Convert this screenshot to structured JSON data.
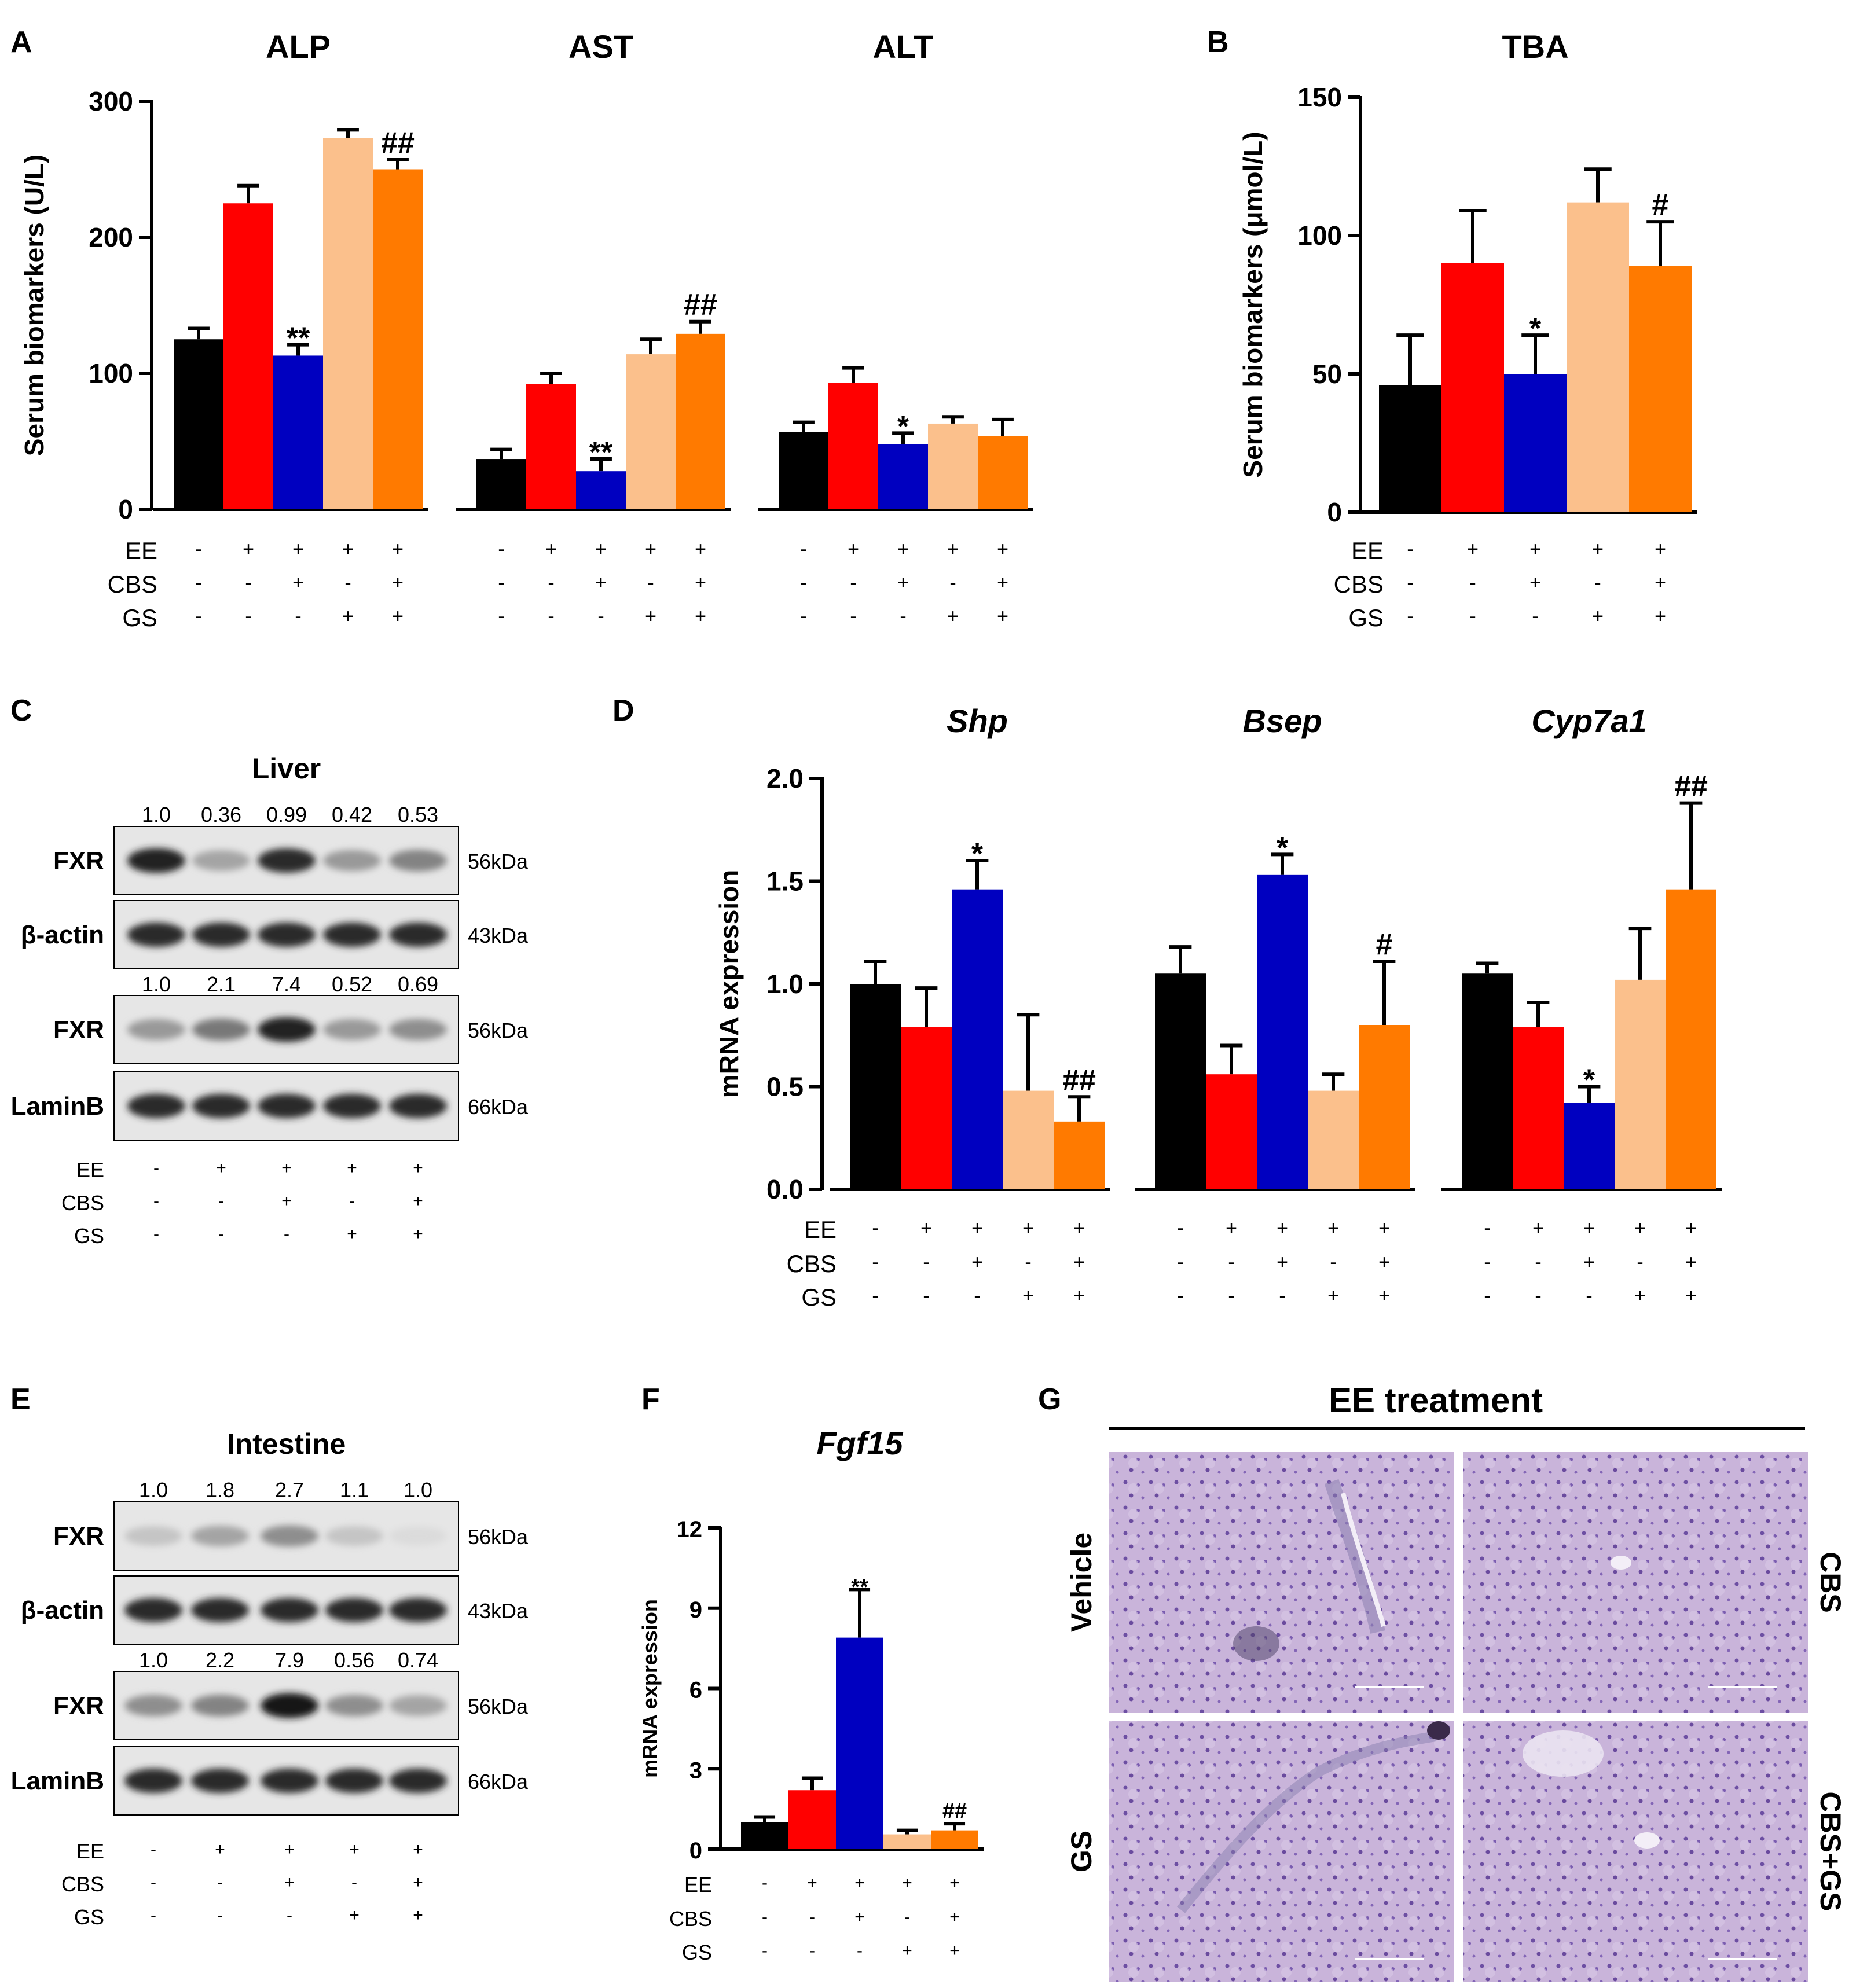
{
  "colors": [
    "#000000",
    "#ff0000",
    "#0000c0",
    "#fbc08c",
    "#ff7a00"
  ],
  "chart_data": [
    {
      "panel": "A",
      "type": "bar",
      "ylabel": "Serum biomarkers (U/L)",
      "ylim": [
        0,
        300
      ],
      "ticks": [
        "0",
        "100",
        "200",
        "300"
      ],
      "tickvals": [
        0,
        100,
        200,
        300
      ],
      "treatment": {
        "rows": [
          "EE",
          "CBS",
          "GS"
        ],
        "signs": [
          [
            "-",
            "+",
            "+",
            "+",
            "+"
          ],
          [
            "-",
            "-",
            "+",
            "-",
            "+"
          ],
          [
            "-",
            "-",
            "-",
            "+",
            "+"
          ]
        ]
      },
      "groups": [
        {
          "title": "ALP",
          "values": [
            125,
            225,
            113,
            273,
            250
          ],
          "errors": [
            8,
            13,
            8,
            6,
            7
          ],
          "sig": [
            "",
            "",
            "**",
            "",
            "##"
          ]
        },
        {
          "title": "AST",
          "values": [
            37,
            92,
            28,
            114,
            129
          ],
          "errors": [
            7,
            8,
            9,
            11,
            9
          ],
          "sig": [
            "",
            "",
            "**",
            "",
            "##"
          ]
        },
        {
          "title": "ALT",
          "values": [
            57,
            93,
            48,
            63,
            54
          ],
          "errors": [
            7,
            11,
            8,
            5,
            12
          ],
          "sig": [
            "",
            "",
            "*",
            "",
            ""
          ]
        }
      ]
    },
    {
      "panel": "B",
      "type": "bar",
      "ylabel": "Serum biomarkers (μmol/L)",
      "ylim": [
        0,
        150
      ],
      "ticks": [
        "0",
        "50",
        "100",
        "150"
      ],
      "tickvals": [
        0,
        50,
        100,
        150
      ],
      "treatment": {
        "rows": [
          "EE",
          "CBS",
          "GS"
        ],
        "signs": [
          [
            "-",
            "+",
            "+",
            "+",
            "+"
          ],
          [
            "-",
            "-",
            "+",
            "-",
            "+"
          ],
          [
            "-",
            "-",
            "-",
            "+",
            "+"
          ]
        ]
      },
      "groups": [
        {
          "title": "TBA",
          "values": [
            46,
            90,
            50,
            112,
            89
          ],
          "errors": [
            18,
            19,
            14,
            12,
            16
          ],
          "sig": [
            "",
            "",
            "*",
            "",
            "#"
          ]
        }
      ]
    },
    {
      "panel": "D",
      "type": "bar",
      "ylabel": "mRNA expression",
      "ylim": [
        0,
        2.0
      ],
      "ticks": [
        "0.0",
        "0.5",
        "1.0",
        "1.5",
        "2.0"
      ],
      "tickvals": [
        0,
        0.5,
        1.0,
        1.5,
        2.0
      ],
      "treatment": {
        "rows": [
          "EE",
          "CBS",
          "GS"
        ],
        "signs": [
          [
            "-",
            "+",
            "+",
            "+",
            "+"
          ],
          [
            "-",
            "-",
            "+",
            "-",
            "+"
          ],
          [
            "-",
            "-",
            "-",
            "+",
            "+"
          ]
        ]
      },
      "groups": [
        {
          "title": "Shp",
          "values": [
            1.0,
            0.79,
            1.46,
            0.48,
            0.33
          ],
          "errors": [
            0.11,
            0.19,
            0.14,
            0.37,
            0.12
          ],
          "sig": [
            "",
            "",
            "*",
            "",
            "##"
          ]
        },
        {
          "title": "Bsep",
          "values": [
            1.05,
            0.56,
            1.53,
            0.48,
            0.8
          ],
          "errors": [
            0.13,
            0.14,
            0.1,
            0.08,
            0.31
          ],
          "sig": [
            "",
            "",
            "*",
            "",
            "#"
          ]
        },
        {
          "title": "Cyp7a1",
          "values": [
            1.05,
            0.79,
            0.42,
            1.02,
            1.46
          ],
          "errors": [
            0.05,
            0.12,
            0.08,
            0.25,
            0.42
          ],
          "sig": [
            "",
            "",
            "*",
            "",
            "##"
          ]
        }
      ]
    },
    {
      "panel": "F",
      "type": "bar",
      "ylabel": "mRNA expression",
      "ylim": [
        0,
        12
      ],
      "ticks": [
        "0",
        "3",
        "6",
        "9",
        "12"
      ],
      "tickvals": [
        0,
        3,
        6,
        9,
        12
      ],
      "treatment": {
        "rows": [
          "EE",
          "CBS",
          "GS"
        ],
        "signs": [
          [
            "-",
            "+",
            "+",
            "+",
            "+"
          ],
          [
            "-",
            "-",
            "+",
            "-",
            "+"
          ],
          [
            "-",
            "-",
            "-",
            "+",
            "+"
          ]
        ]
      },
      "groups": [
        {
          "title": "Fgf15",
          "values": [
            1.0,
            2.2,
            7.9,
            0.55,
            0.7
          ],
          "errors": [
            0.2,
            0.45,
            1.8,
            0.15,
            0.25
          ],
          "sig": [
            "",
            "",
            "**",
            "",
            "##"
          ]
        }
      ]
    }
  ],
  "blots": [
    {
      "panel": "C",
      "title": "Liver",
      "treatment": {
        "rows": [
          "EE",
          "CBS",
          "GS"
        ],
        "signs": [
          [
            "-",
            "+",
            "+",
            "+",
            "+"
          ],
          [
            "-",
            "-",
            "+",
            "-",
            "+"
          ],
          [
            "-",
            "-",
            "-",
            "+",
            "+"
          ]
        ]
      },
      "sets": [
        {
          "quant": [
            "1.0",
            "0.36",
            "0.99",
            "0.42",
            "0.53"
          ],
          "intensities": [
            0.9,
            0.3,
            0.85,
            0.35,
            0.45
          ],
          "bands": [
            {
              "label": "FXR",
              "kda": "56kDa"
            },
            {
              "label": "β-actin",
              "kda": "43kDa"
            }
          ]
        },
        {
          "quant": [
            "1.0",
            "2.1",
            "7.4",
            "0.52",
            "0.69"
          ],
          "intensities": [
            0.35,
            0.5,
            0.9,
            0.35,
            0.4
          ],
          "bands": [
            {
              "label": "FXR",
              "kda": "56kDa"
            },
            {
              "label": "LaminB",
              "kda": "66kDa"
            }
          ]
        }
      ]
    },
    {
      "panel": "E",
      "title": "Intestine",
      "treatment": {
        "rows": [
          "EE",
          "CBS",
          "GS"
        ],
        "signs": [
          [
            "-",
            "+",
            "+",
            "+",
            "+"
          ],
          [
            "-",
            "-",
            "+",
            "-",
            "+"
          ],
          [
            "-",
            "-",
            "-",
            "+",
            "+"
          ]
        ]
      },
      "sets": [
        {
          "quant": [
            "1.0",
            "1.8",
            "2.7",
            "1.1",
            "1.0"
          ],
          "intensities": [
            0.15,
            0.3,
            0.4,
            0.15,
            0.05
          ],
          "bands": [
            {
              "label": "FXR",
              "kda": "56kDa"
            },
            {
              "label": "β-actin",
              "kda": "43kDa"
            }
          ]
        },
        {
          "quant": [
            "1.0",
            "2.2",
            "7.9",
            "0.56",
            "0.74"
          ],
          "intensities": [
            0.4,
            0.45,
            0.95,
            0.4,
            0.3
          ],
          "bands": [
            {
              "label": "FXR",
              "kda": "56kDa"
            },
            {
              "label": "LaminB",
              "kda": "66kDa"
            }
          ]
        }
      ]
    }
  ],
  "histology": {
    "panel": "G",
    "title": "EE treatment",
    "labels": {
      "vehicle": "Vehicle",
      "cbs": "CBS",
      "gs": "GS",
      "cbs_gs": "CBS+GS"
    }
  }
}
